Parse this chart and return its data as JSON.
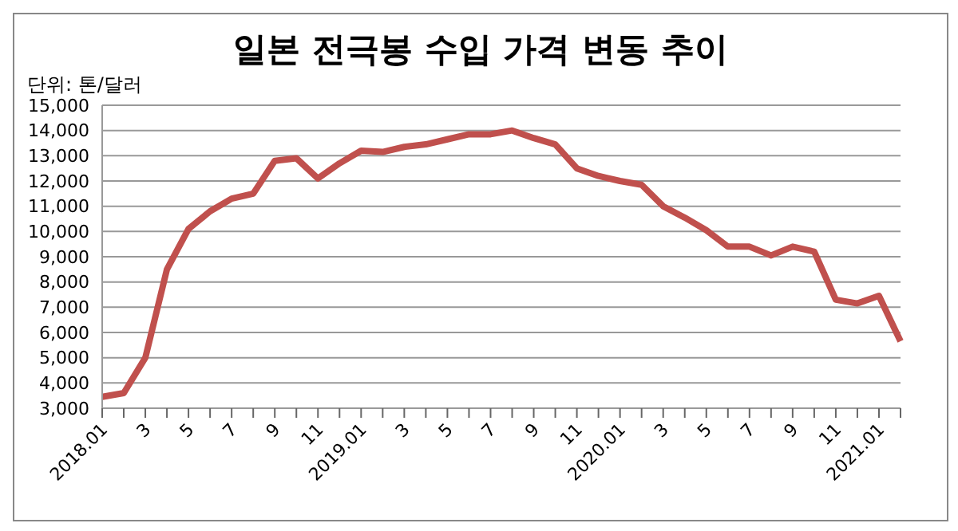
{
  "chart_data": {
    "type": "line",
    "title": "일본 전극봉 수입 가격 변동 추이",
    "annotations": [
      "단위: 톤/달러"
    ],
    "categories": [
      "2018.01",
      null,
      "3",
      null,
      "5",
      null,
      "7",
      null,
      "9",
      null,
      "11",
      null,
      "2019.01",
      null,
      "3",
      null,
      "5",
      null,
      "7",
      null,
      "9",
      null,
      "11",
      null,
      "2020.01",
      null,
      "3",
      null,
      "5",
      null,
      "7",
      null,
      "9",
      null,
      "11",
      null,
      "2021.01",
      null
    ],
    "series": [
      {
        "color": "#c0504d",
        "values": [
          3450,
          3600,
          5000,
          8500,
          10100,
          10800,
          11300,
          11500,
          12800,
          12900,
          12100,
          12700,
          13200,
          13150,
          13350,
          13450,
          13650,
          13850,
          13850,
          14000,
          13700,
          13450,
          12500,
          12200,
          12000,
          11850,
          11000,
          10550,
          10050,
          9400,
          9400,
          9050,
          9400,
          9200,
          7300,
          7150,
          7450,
          5650
        ]
      }
    ],
    "ylim": [
      3000,
      15000
    ],
    "yticks": [
      {
        "value": 3000,
        "label": "3,000"
      },
      {
        "value": 4000,
        "label": "4,000"
      },
      {
        "value": 5000,
        "label": "5,000"
      },
      {
        "value": 6000,
        "label": "6,000"
      },
      {
        "value": 7000,
        "label": "7,000"
      },
      {
        "value": 8000,
        "label": "8,000"
      },
      {
        "value": 9000,
        "label": "9,000"
      },
      {
        "value": 10000,
        "label": "10,000"
      },
      {
        "value": 11000,
        "label": "11,000"
      },
      {
        "value": 12000,
        "label": "12,000"
      },
      {
        "value": 13000,
        "label": "13,000"
      },
      {
        "value": 14000,
        "label": "14,000"
      },
      {
        "value": 15000,
        "label": "15,000"
      }
    ],
    "grid": "y",
    "marker": "none",
    "line_style": "solid"
  }
}
